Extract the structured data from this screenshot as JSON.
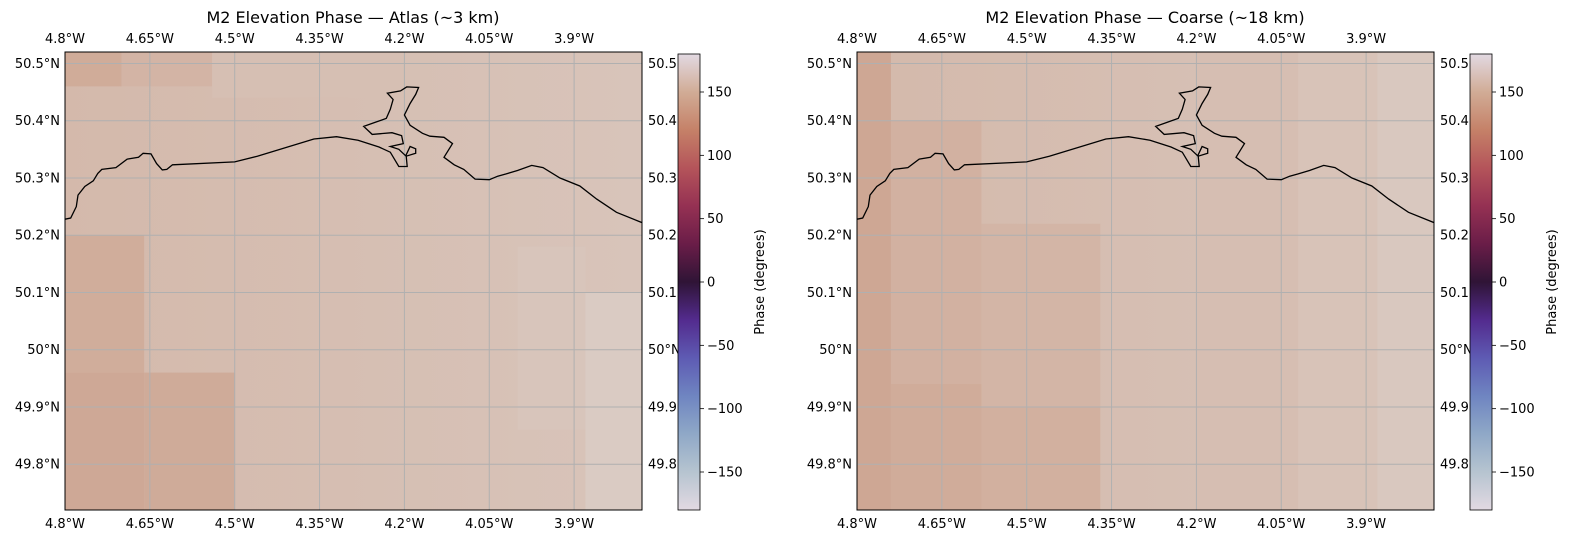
{
  "panels": [
    {
      "title": "M2 Elevation Phase — Atlas (~3 km)",
      "tint": "#c9a48f",
      "blocks": [
        {
          "lon": [
            -4.8,
            -4.66
          ],
          "lat": [
            49.72,
            49.96
          ],
          "color": "#cea896"
        },
        {
          "lon": [
            -4.66,
            -4.5
          ],
          "lat": [
            49.72,
            49.96
          ],
          "color": "#cfab99"
        },
        {
          "lon": [
            -4.8,
            -4.66
          ],
          "lat": [
            49.96,
            50.2
          ],
          "color": "#d0ad9b"
        },
        {
          "lon": [
            -4.8,
            -4.7
          ],
          "lat": [
            50.46,
            50.52
          ],
          "color": "#d0ac99"
        },
        {
          "lon": [
            -4.7,
            -4.54
          ],
          "lat": [
            50.46,
            50.52
          ],
          "color": "#d3b4a5"
        },
        {
          "lon": [
            -4.54,
            -4.2
          ],
          "lat": [
            50.44,
            50.52
          ],
          "color": "#d6bfb3"
        },
        {
          "lon": [
            -4.0,
            -3.88
          ],
          "lat": [
            49.86,
            50.18
          ],
          "color": "#d8c5bb"
        },
        {
          "lon": [
            -3.88,
            -3.78
          ],
          "lat": [
            49.72,
            50.1
          ],
          "color": "#dacbc3"
        }
      ]
    },
    {
      "title": "M2 Elevation Phase — Coarse (~18 km)",
      "tint": "#c9a48f",
      "blocks": [
        {
          "lon": [
            -4.8,
            -4.74
          ],
          "lat": [
            49.72,
            50.52
          ],
          "color": "#cea794"
        },
        {
          "lon": [
            -4.74,
            -4.58
          ],
          "lat": [
            49.72,
            49.94
          ],
          "color": "#d0ac9a"
        },
        {
          "lon": [
            -4.58,
            -4.37
          ],
          "lat": [
            49.72,
            49.9
          ],
          "color": "#d2b09f"
        },
        {
          "lon": [
            -4.74,
            -4.58
          ],
          "lat": [
            49.94,
            50.4
          ],
          "color": "#d2b1a1"
        },
        {
          "lon": [
            -4.58,
            -4.37
          ],
          "lat": [
            49.9,
            50.22
          ],
          "color": "#d3b5a6"
        },
        {
          "lon": [
            -4.2,
            -4.02
          ],
          "lat": [
            49.72,
            50.52
          ],
          "color": "#d6beb2"
        },
        {
          "lon": [
            -4.02,
            -3.88
          ],
          "lat": [
            49.72,
            50.52
          ],
          "color": "#d8c3b8"
        },
        {
          "lon": [
            -3.88,
            -3.78
          ],
          "lat": [
            49.72,
            50.52
          ],
          "color": "#d9c8bf"
        }
      ]
    }
  ],
  "map": {
    "lon_range": [
      -4.8,
      -3.78
    ],
    "lat_range": [
      49.72,
      50.52
    ],
    "base_color": "#d4b9ab",
    "east_color": "#d8c4ba",
    "coast_color": "#000000",
    "grid_color": "#b0b0b0",
    "lon_ticks": [
      -4.8,
      -4.65,
      -4.5,
      -4.35,
      -4.2,
      -4.05,
      -3.9
    ],
    "lon_tick_labels": [
      "4.8°W",
      "4.65°W",
      "4.5°W",
      "4.35°W",
      "4.2°W",
      "4.05°W",
      "3.9°W"
    ],
    "lat_ticks": [
      49.8,
      49.9,
      50.0,
      50.1,
      50.2,
      50.3,
      50.4,
      50.5
    ],
    "lat_tick_labels": [
      "49.8°N",
      "49.9°N",
      "50°N",
      "50.1°N",
      "50.2°N",
      "50.3°N",
      "50.4°N",
      "50.5°N"
    ],
    "right_lat_tick_labels": [
      "49.8",
      "49.9",
      "50°N",
      "50.1",
      "50.2",
      "50.3",
      "50.4",
      "50.5"
    ],
    "coastline": [
      [
        -4.8,
        50.228
      ],
      [
        -4.79,
        50.23
      ],
      [
        -4.78,
        50.25
      ],
      [
        -4.777,
        50.27
      ],
      [
        -4.765,
        50.285
      ],
      [
        -4.75,
        50.295
      ],
      [
        -4.742,
        50.308
      ],
      [
        -4.735,
        50.315
      ],
      [
        -4.71,
        50.318
      ],
      [
        -4.69,
        50.333
      ],
      [
        -4.67,
        50.336
      ],
      [
        -4.662,
        50.343
      ],
      [
        -4.648,
        50.342
      ],
      [
        -4.638,
        50.325
      ],
      [
        -4.628,
        50.314
      ],
      [
        -4.62,
        50.315
      ],
      [
        -4.61,
        50.323
      ],
      [
        -4.5,
        50.328
      ],
      [
        -4.46,
        50.338
      ],
      [
        -4.36,
        50.368
      ],
      [
        -4.32,
        50.372
      ],
      [
        -4.282,
        50.366
      ],
      [
        -4.245,
        50.354
      ],
      [
        -4.225,
        50.345
      ],
      [
        -4.21,
        50.32
      ],
      [
        -4.195,
        50.32
      ],
      [
        -4.197,
        50.34
      ],
      [
        -4.19,
        50.355
      ],
      [
        -4.18,
        50.351
      ],
      [
        -4.18,
        50.343
      ],
      [
        -4.197,
        50.338
      ],
      [
        -4.21,
        50.35
      ],
      [
        -4.225,
        50.355
      ],
      [
        -4.202,
        50.36
      ],
      [
        -4.205,
        50.374
      ],
      [
        -4.222,
        50.379
      ],
      [
        -4.257,
        50.376
      ],
      [
        -4.272,
        50.39
      ],
      [
        -4.252,
        50.397
      ],
      [
        -4.232,
        50.404
      ],
      [
        -4.225,
        50.42
      ],
      [
        -4.22,
        50.437
      ],
      [
        -4.23,
        50.448
      ],
      [
        -4.207,
        50.452
      ],
      [
        -4.196,
        50.459
      ],
      [
        -4.175,
        50.458
      ],
      [
        -4.18,
        50.446
      ],
      [
        -4.19,
        50.43
      ],
      [
        -4.2,
        50.41
      ],
      [
        -4.19,
        50.392
      ],
      [
        -4.168,
        50.378
      ],
      [
        -4.155,
        50.373
      ],
      [
        -4.13,
        50.371
      ],
      [
        -4.115,
        50.36
      ],
      [
        -4.13,
        50.336
      ],
      [
        -4.112,
        50.323
      ],
      [
        -4.095,
        50.315
      ],
      [
        -4.075,
        50.298
      ],
      [
        -4.05,
        50.297
      ],
      [
        -4.035,
        50.303
      ],
      [
        -4.02,
        50.307
      ],
      [
        -4.0,
        50.313
      ],
      [
        -3.975,
        50.322
      ],
      [
        -3.955,
        50.318
      ],
      [
        -3.925,
        50.3
      ],
      [
        -3.89,
        50.286
      ],
      [
        -3.86,
        50.263
      ],
      [
        -3.825,
        50.24
      ],
      [
        -3.78,
        50.222
      ]
    ]
  },
  "colorbar": {
    "label": "Phase (degrees)",
    "ticks": [
      150,
      100,
      50,
      0,
      -50,
      -100,
      -150
    ],
    "tick_labels": [
      "150",
      "100",
      "50",
      "0",
      "−50",
      "−100",
      "−150"
    ],
    "range": [
      -180,
      180
    ],
    "colormap": "twilight",
    "stops": [
      {
        "value": -180,
        "color": "#e2d9e2"
      },
      {
        "value": -150,
        "color": "#b6c4d0"
      },
      {
        "value": -120,
        "color": "#8fa8c7"
      },
      {
        "value": -90,
        "color": "#6f85c1"
      },
      {
        "value": -60,
        "color": "#5e5bb3"
      },
      {
        "value": -30,
        "color": "#532b8e"
      },
      {
        "value": 0,
        "color": "#2f1436"
      },
      {
        "value": 30,
        "color": "#6a1d48"
      },
      {
        "value": 60,
        "color": "#953153"
      },
      {
        "value": 90,
        "color": "#b4545a"
      },
      {
        "value": 120,
        "color": "#c58168"
      },
      {
        "value": 150,
        "color": "#d1ac96"
      },
      {
        "value": 180,
        "color": "#e2d9e2"
      }
    ]
  }
}
